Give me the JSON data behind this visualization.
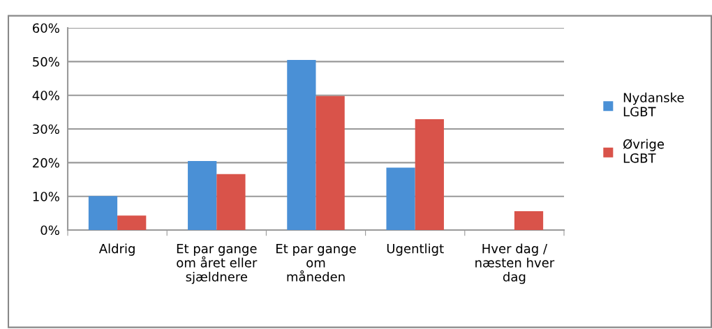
{
  "chart_data": {
    "type": "bar",
    "categories": [
      "Aldrig",
      "Et par gange\nom året eller\nsjældnere",
      "Et par gange\nom\nmåneden",
      "Ugentligt",
      "Hver dag /\nnæsten hver\ndag"
    ],
    "series": [
      {
        "name": "Nydanske\nLGBT",
        "color": "#4a90d6",
        "values": [
          10.1,
          20.5,
          50.5,
          18.5,
          0
        ]
      },
      {
        "name": "Øvrige\nLGBT",
        "color": "#d9534a",
        "values": [
          4.3,
          16.6,
          39.8,
          32.9,
          5.6
        ]
      }
    ],
    "ylim": [
      0,
      60
    ],
    "yticks": [
      {
        "value": 0,
        "label": "0%"
      },
      {
        "value": 10,
        "label": "10%"
      },
      {
        "value": 20,
        "label": "20%"
      },
      {
        "value": 30,
        "label": "30%"
      },
      {
        "value": 40,
        "label": "40%"
      },
      {
        "value": 50,
        "label": "50%"
      },
      {
        "value": 60,
        "label": "60%"
      }
    ],
    "grid": "y",
    "legend": "right"
  }
}
